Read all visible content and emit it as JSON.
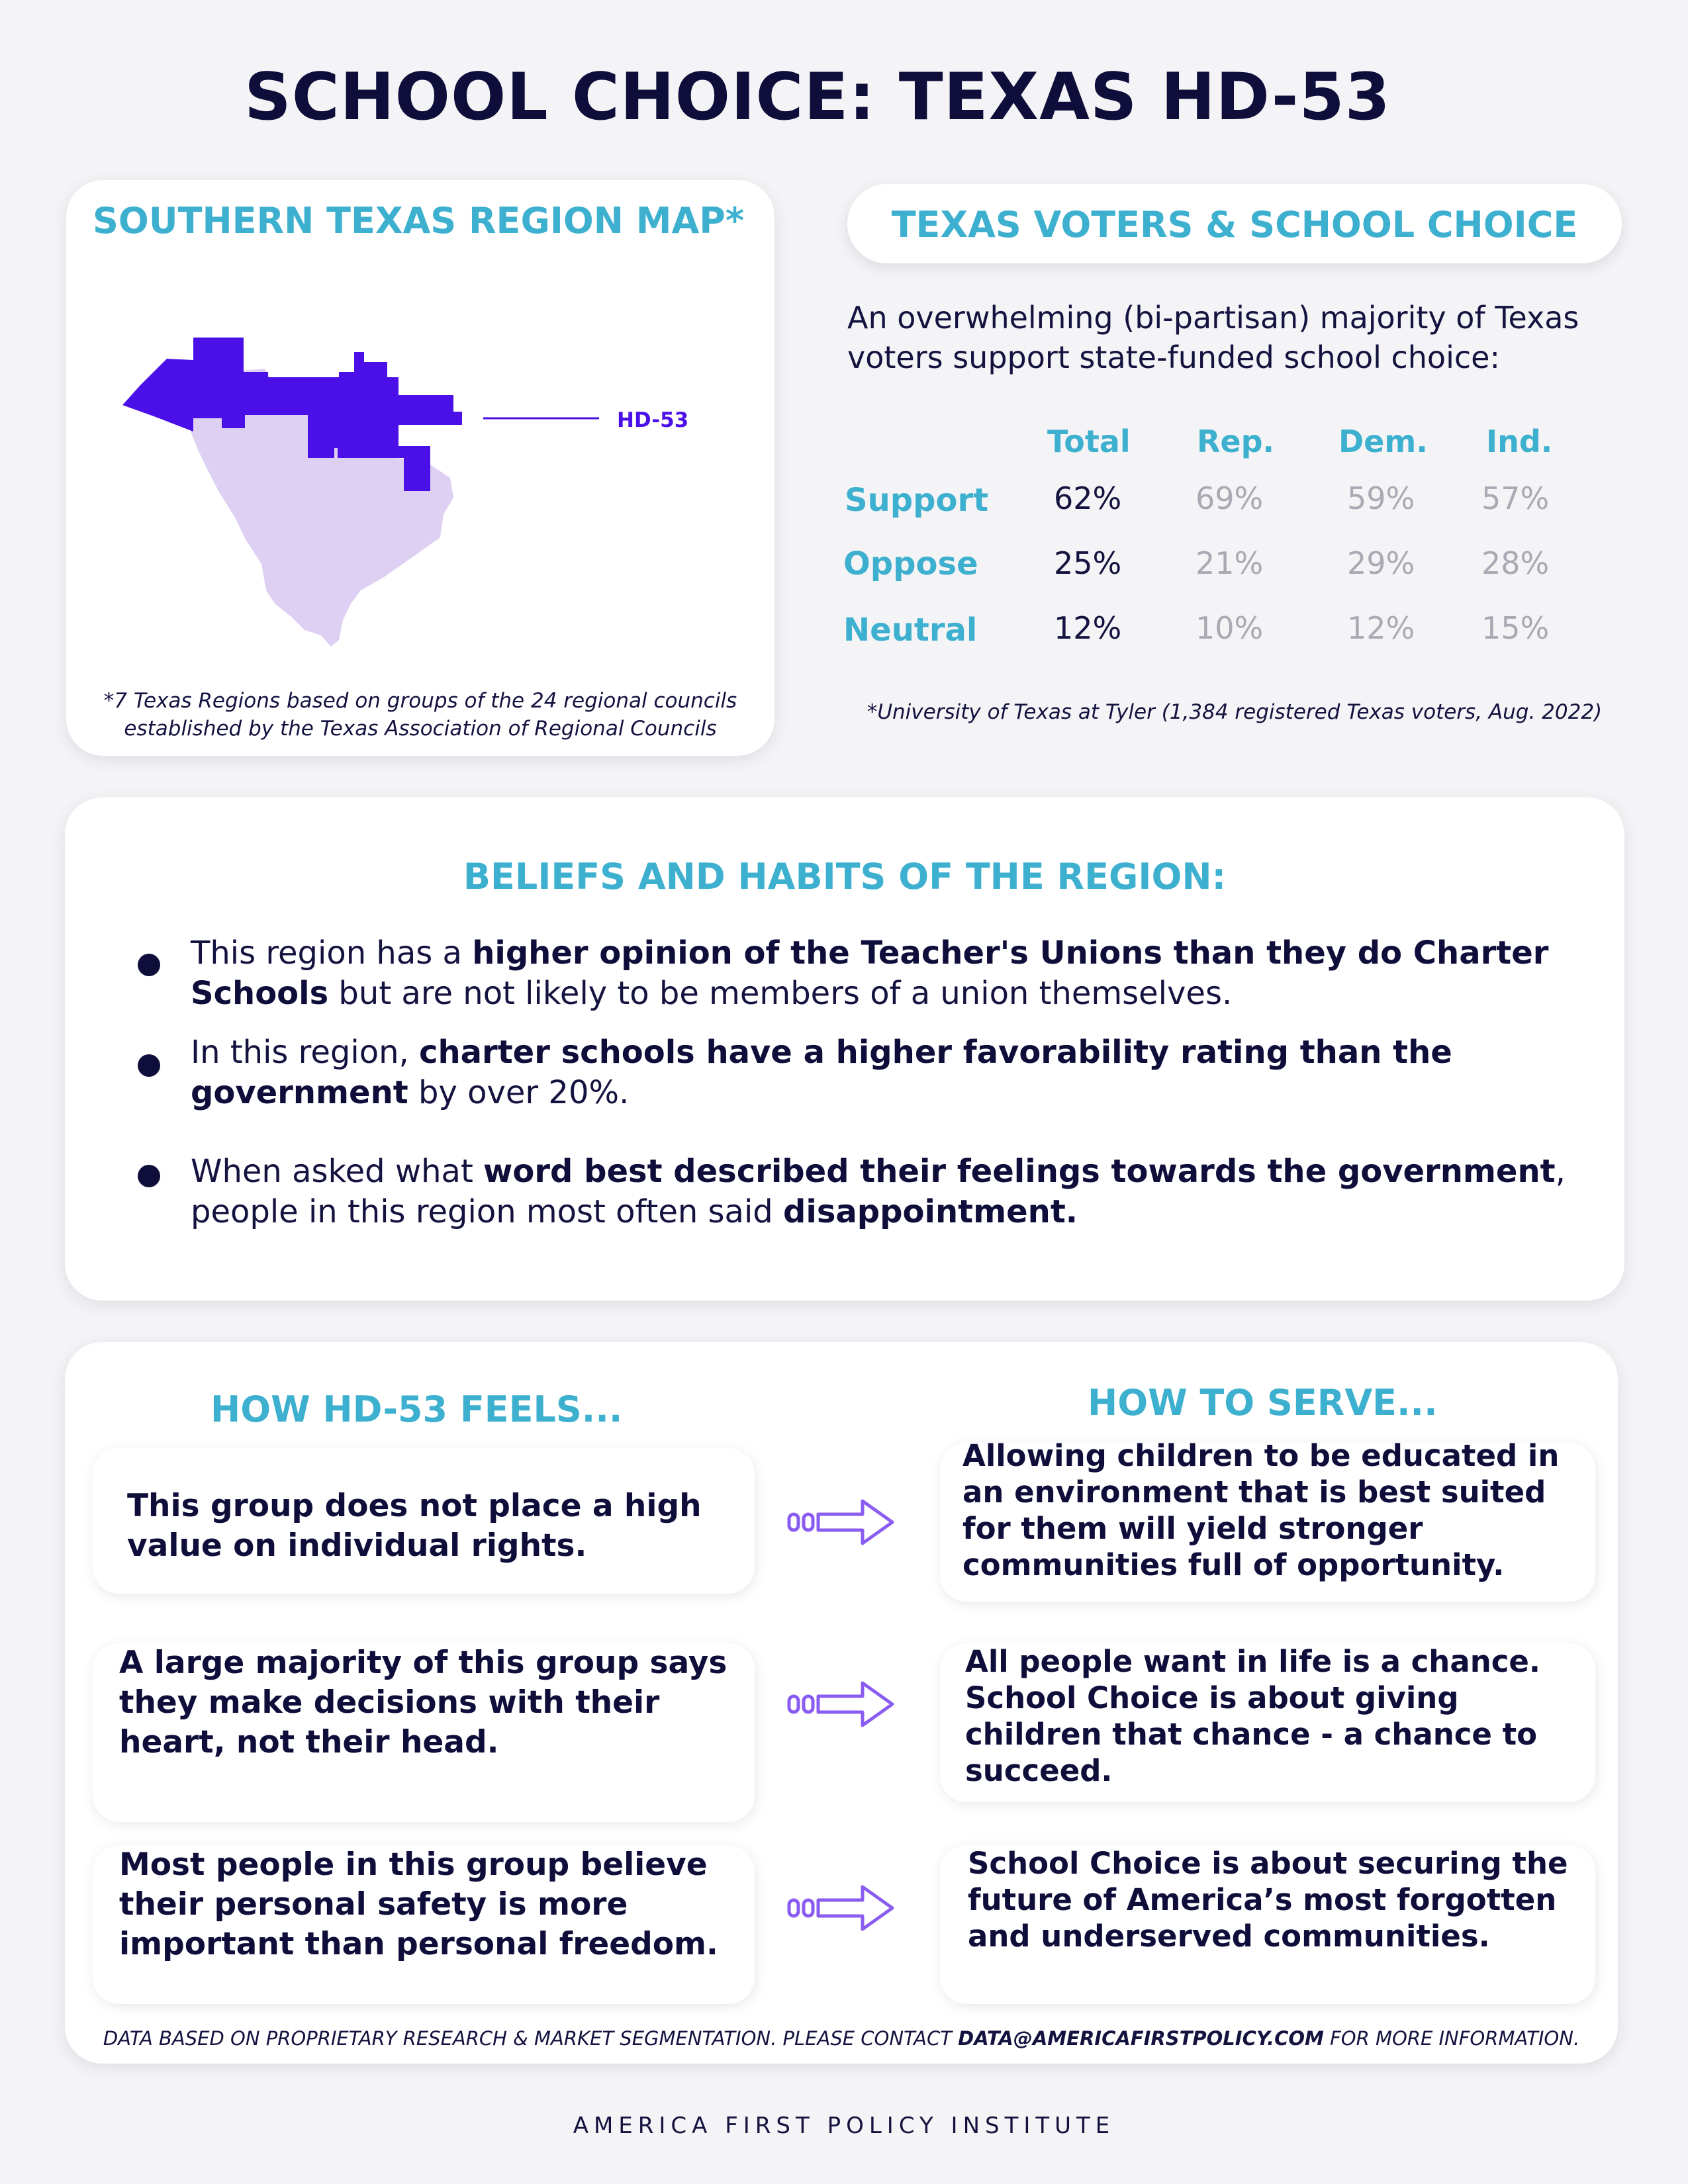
{
  "title": "SCHOOL CHOICE: TEXAS HD-53",
  "map": {
    "title": "SOUTHERN TEXAS REGION MAP*",
    "district_label": "HD-53",
    "footnote_line1": "*7 Texas Regions based on groups of the 24 regional councils",
    "footnote_line2": "established by the Texas Association of Regional Councils",
    "colors": {
      "district": "#4b10e8",
      "region": "#ddd0f3"
    }
  },
  "voters": {
    "title": "TEXAS VOTERS & SCHOOL CHOICE",
    "intro": "An overwhelming (bi-partisan) majority of Texas voters support state-funded school choice:",
    "columns": [
      "Total",
      "Rep.",
      "Dem.",
      "Ind."
    ],
    "rows": [
      {
        "label": "Support",
        "values": [
          "62%",
          "69%",
          "59%",
          "57%"
        ]
      },
      {
        "label": "Oppose",
        "values": [
          "25%",
          "21%",
          "29%",
          "28%"
        ]
      },
      {
        "label": "Neutral",
        "values": [
          "12%",
          "10%",
          "12%",
          "15%"
        ]
      }
    ],
    "source": "*University of Texas at Tyler (1,384 registered Texas voters, Aug. 2022)"
  },
  "beliefs": {
    "title": "BELIEFS AND HABITS OF THE REGION:",
    "bullets": [
      {
        "parts": [
          {
            "t": "This region has a ",
            "b": false
          },
          {
            "t": "higher opinion of the Teacher's Unions than they do Charter Schools",
            "b": true
          },
          {
            "t": " but are not likely to be members of a union themselves.",
            "b": false
          }
        ]
      },
      {
        "parts": [
          {
            "t": "In this region, ",
            "b": false
          },
          {
            "t": "charter schools have a higher favorability rating than the government",
            "b": true
          },
          {
            "t": " by over 20%.",
            "b": false
          }
        ]
      },
      {
        "parts": [
          {
            "t": "When asked what ",
            "b": false
          },
          {
            "t": "word best described their feelings towards the government",
            "b": true
          },
          {
            "t": ", people in this region most often said ",
            "b": false
          },
          {
            "t": "disappointment.",
            "b": true
          }
        ]
      }
    ]
  },
  "feels_serve": {
    "feels_title": "HOW HD-53 FEELS...",
    "serve_title": "HOW TO SERVE...",
    "pairs": [
      {
        "feels": "This group does not place a high value on individual rights.",
        "serve": "Allowing children to be educated in an environment that is best suited for them will yield stronger communities full of opportunity."
      },
      {
        "feels": "A large majority of this group says they make decisions with their heart, not their head.",
        "serve": "All people want in life is a chance. School Choice is about giving children that chance - a chance to succeed."
      },
      {
        "feels": "Most people in this group believe their personal safety is more important than personal freedom.",
        "serve": "School Choice is about securing the future of America’s most forgotten and underserved communities."
      }
    ],
    "note_prefix": "DATA BASED ON PROPRIETARY RESEARCH & MARKET SEGMENTATION. PLEASE CONTACT ",
    "note_email": "DATA@AMERICAFIRSTPOLICY.COM",
    "note_suffix": " FOR MORE INFORMATION.",
    "arrow_color": "#8a5cf0"
  },
  "footer": "AMERICA FIRST POLICY INSTITUTE"
}
